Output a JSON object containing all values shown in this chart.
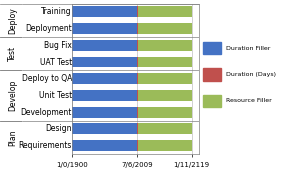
{
  "categories": [
    "Requirements",
    "Design",
    "Development",
    "Unit Test",
    "Deploy to QA",
    "UAT Test",
    "Bug Fix",
    "Deployment",
    "Training"
  ],
  "groups": [
    {
      "label": "Plan",
      "rows": [
        "Requirements",
        "Design"
      ]
    },
    {
      "label": "Develop",
      "rows": [
        "Development",
        "Unit Test",
        "Deploy to QA"
      ]
    },
    {
      "label": "Test",
      "rows": [
        "UAT Test",
        "Bug Fix"
      ]
    },
    {
      "label": "Deploy",
      "rows": [
        "Deployment",
        "Training"
      ]
    }
  ],
  "duration_filler": [
    365,
    365,
    365,
    365,
    365,
    365,
    365,
    365,
    365
  ],
  "duration_days": [
    5,
    5,
    5,
    5,
    5,
    5,
    5,
    5,
    5
  ],
  "resource_filler": [
    300,
    300,
    300,
    300,
    300,
    300,
    300,
    300,
    300
  ],
  "bar_color_filler": "#4472C4",
  "bar_color_days": "#C0504D",
  "bar_color_resource": "#9BBB59",
  "bg_color": "#FFFFFF",
  "xlabel_ticks": [
    "1/0/1900",
    "7/6/2009",
    "1/11/2119"
  ],
  "legend_labels": [
    "Duration Filler",
    "Duration (Days)",
    "Resource Filler"
  ],
  "grid_color": "#BFBFBF",
  "axis_border_color": "#808080",
  "font_size": 6.5,
  "bar_height": 0.65
}
